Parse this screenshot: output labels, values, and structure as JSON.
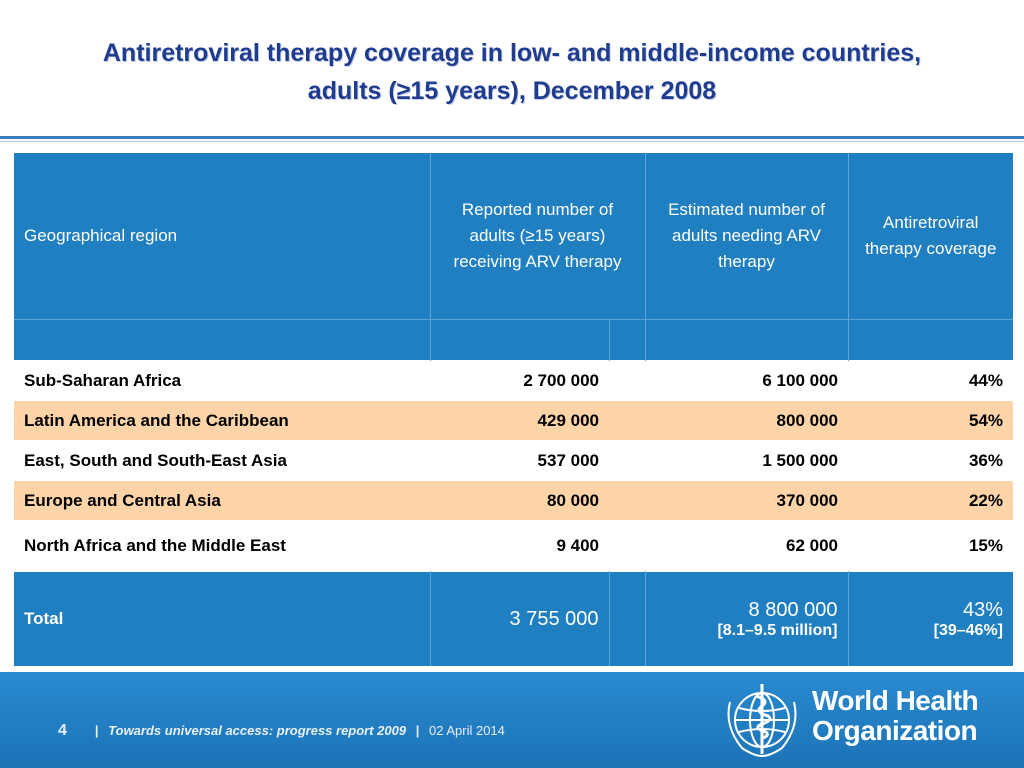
{
  "title": {
    "line1": "Antiretroviral therapy coverage in low- and middle-income countries,",
    "line2": "adults (≥15 years), December 2008"
  },
  "table": {
    "headers": [
      "Geographical region",
      "Reported number of adults (≥15 years) receiving ARV therapy",
      "Estimated number of adults needing  ARV therapy",
      "Antiretroviral therapy coverage"
    ],
    "rows": [
      {
        "region": "Sub-Saharan Africa",
        "reported": "2 700 000",
        "estimated": "6 100 000",
        "coverage": "44%"
      },
      {
        "region": "Latin America and the Caribbean",
        "reported": "429 000",
        "estimated": "800 000",
        "coverage": "54%"
      },
      {
        "region": "East, South and South-East Asia",
        "reported": "537 000",
        "estimated": "1 500 000",
        "coverage": "36%"
      },
      {
        "region": "Europe and Central Asia",
        "reported": "80 000",
        "estimated": "370 000",
        "coverage": "22%"
      },
      {
        "region": "North Africa and the Middle East",
        "reported": "9 400",
        "estimated": "62 000",
        "coverage": "15%"
      }
    ],
    "total": {
      "label": "Total",
      "reported": "3 755 000",
      "estimated": "8 800 000",
      "estimated_range": "[8.1–9.5 million]",
      "coverage": "43%",
      "coverage_range": "[39–46%]"
    }
  },
  "footer": {
    "page_number": "4",
    "separator": "|",
    "report_title": "Towards universal access: progress report 2009",
    "date": "02 April 2014",
    "org_line1": "World Health",
    "org_line2": "Organization"
  },
  "colors": {
    "header_blue": "#1f7fc0",
    "row_peach": "#fdd4a8",
    "title_blue": "#1f3c8f"
  }
}
